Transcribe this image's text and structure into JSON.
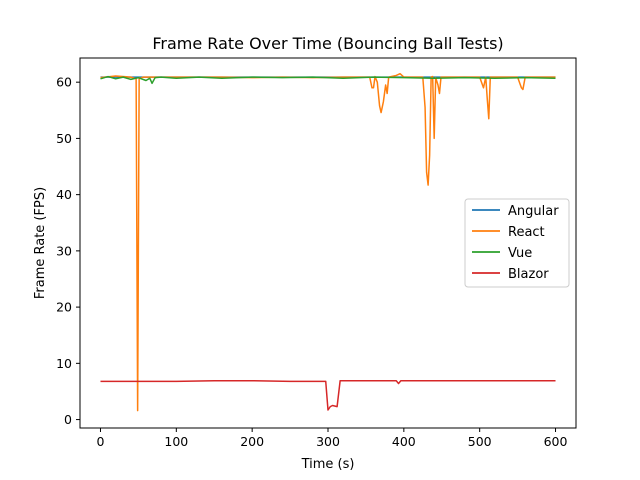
{
  "chart_data": {
    "type": "line",
    "title": "Frame Rate Over Time (Bouncing Ball Tests)",
    "xlabel": "Time (s)",
    "ylabel": "Frame Rate (FPS)",
    "xlim": [
      -27,
      627
    ],
    "ylim": [
      -1.5,
      64.3
    ],
    "xticks": [
      0,
      100,
      200,
      300,
      400,
      500,
      600
    ],
    "yticks": [
      0,
      10,
      20,
      30,
      40,
      50,
      60
    ],
    "grid": false,
    "legend_position": "center-right",
    "series": [
      {
        "name": "Angular",
        "color": "#1f77b4",
        "points": [
          [
            0,
            60.9
          ],
          [
            100,
            60.9
          ],
          [
            200,
            60.9
          ],
          [
            300,
            60.9
          ],
          [
            400,
            60.9
          ],
          [
            500,
            60.9
          ],
          [
            600,
            60.9
          ]
        ]
      },
      {
        "name": "React",
        "color": "#ff7f0e",
        "points": [
          [
            0,
            60.8
          ],
          [
            20,
            61.1
          ],
          [
            40,
            60.9
          ],
          [
            47,
            60.6
          ],
          [
            49,
            1.6
          ],
          [
            51,
            60.8
          ],
          [
            53,
            60.7
          ],
          [
            56,
            60.9
          ],
          [
            80,
            60.9
          ],
          [
            120,
            60.9
          ],
          [
            160,
            60.9
          ],
          [
            200,
            60.8
          ],
          [
            240,
            60.9
          ],
          [
            280,
            60.8
          ],
          [
            320,
            60.9
          ],
          [
            355,
            60.9
          ],
          [
            358,
            59.0
          ],
          [
            360,
            59.0
          ],
          [
            362,
            61.0
          ],
          [
            365,
            60.0
          ],
          [
            368,
            55.8
          ],
          [
            370,
            54.6
          ],
          [
            373,
            56.5
          ],
          [
            376,
            59.5
          ],
          [
            378,
            58.0
          ],
          [
            380,
            60.9
          ],
          [
            390,
            61.2
          ],
          [
            395,
            61.5
          ],
          [
            400,
            60.9
          ],
          [
            425,
            60.9
          ],
          [
            428,
            55.5
          ],
          [
            430,
            44.0
          ],
          [
            432,
            41.7
          ],
          [
            434,
            47.0
          ],
          [
            436,
            60.9
          ],
          [
            438,
            61.0
          ],
          [
            440,
            50.0
          ],
          [
            442,
            60.8
          ],
          [
            445,
            59.5
          ],
          [
            447,
            58.0
          ],
          [
            449,
            60.9
          ],
          [
            460,
            60.9
          ],
          [
            500,
            60.9
          ],
          [
            505,
            59.0
          ],
          [
            508,
            60.9
          ],
          [
            510,
            57.0
          ],
          [
            512,
            53.5
          ],
          [
            514,
            60.9
          ],
          [
            550,
            60.9
          ],
          [
            555,
            59.0
          ],
          [
            557,
            58.7
          ],
          [
            560,
            60.9
          ],
          [
            600,
            60.9
          ]
        ]
      },
      {
        "name": "Vue",
        "color": "#2ca02c",
        "points": [
          [
            0,
            60.6
          ],
          [
            10,
            61.0
          ],
          [
            20,
            60.6
          ],
          [
            30,
            60.9
          ],
          [
            40,
            60.5
          ],
          [
            50,
            60.8
          ],
          [
            60,
            60.3
          ],
          [
            65,
            60.7
          ],
          [
            68,
            59.8
          ],
          [
            72,
            60.8
          ],
          [
            80,
            60.9
          ],
          [
            100,
            60.7
          ],
          [
            130,
            60.9
          ],
          [
            160,
            60.7
          ],
          [
            200,
            60.9
          ],
          [
            240,
            60.8
          ],
          [
            280,
            60.9
          ],
          [
            320,
            60.7
          ],
          [
            360,
            60.9
          ],
          [
            400,
            60.8
          ],
          [
            440,
            60.7
          ],
          [
            480,
            60.8
          ],
          [
            520,
            60.7
          ],
          [
            560,
            60.8
          ],
          [
            600,
            60.7
          ]
        ]
      },
      {
        "name": "Blazor",
        "color": "#d62728",
        "points": [
          [
            0,
            6.8
          ],
          [
            50,
            6.8
          ],
          [
            100,
            6.8
          ],
          [
            150,
            6.9
          ],
          [
            200,
            6.9
          ],
          [
            250,
            6.8
          ],
          [
            297,
            6.8
          ],
          [
            300,
            1.7
          ],
          [
            303,
            2.3
          ],
          [
            306,
            2.5
          ],
          [
            312,
            2.3
          ],
          [
            316,
            6.9
          ],
          [
            350,
            6.9
          ],
          [
            390,
            6.9
          ],
          [
            393,
            6.4
          ],
          [
            396,
            6.9
          ],
          [
            450,
            6.9
          ],
          [
            500,
            6.9
          ],
          [
            550,
            6.9
          ],
          [
            600,
            6.9
          ]
        ]
      }
    ]
  }
}
